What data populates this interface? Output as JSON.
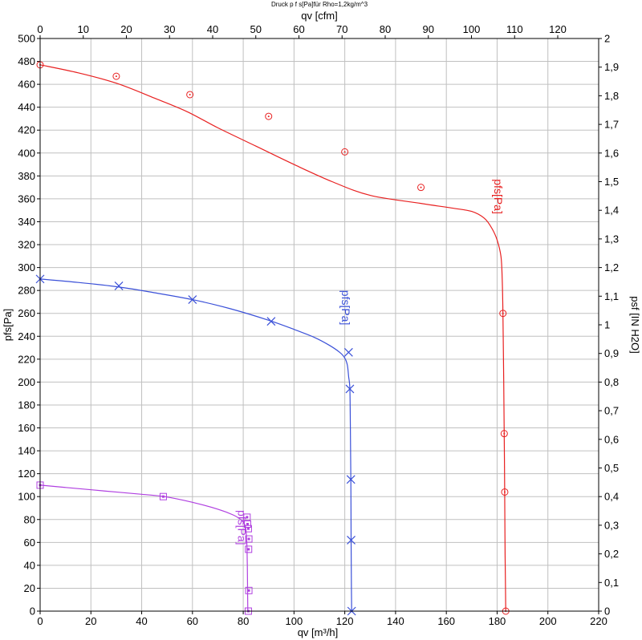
{
  "chart_data": {
    "type": "line",
    "title": "Druck p f s[Pa]für Rho=1,2kg/m^3",
    "xlabel": "qv [m³/h]",
    "x2label": "qv [cfm]",
    "ylabel": "pfs[Pa]",
    "y2label": "psf [IN H2O]",
    "xlim": [
      0,
      220
    ],
    "x2lim": [
      0,
      129.49
    ],
    "ylim": [
      0,
      500
    ],
    "y2lim": [
      0,
      2.0
    ],
    "grid": true,
    "x_ticks": [
      "0",
      "20",
      "40",
      "60",
      "80",
      "100",
      "120",
      "140",
      "160",
      "180",
      "200",
      "220"
    ],
    "x2_ticks": [
      "0",
      "10",
      "20",
      "30",
      "40",
      "50",
      "60",
      "70",
      "80",
      "90",
      "100",
      "110",
      "120"
    ],
    "y_ticks": [
      "0",
      "20",
      "40",
      "60",
      "80",
      "100",
      "120",
      "140",
      "160",
      "180",
      "200",
      "220",
      "240",
      "260",
      "280",
      "300",
      "320",
      "340",
      "360",
      "380",
      "400",
      "420",
      "440",
      "460",
      "480",
      "500"
    ],
    "y2_ticks": [
      "0",
      "0,1",
      "0,2",
      "0,3",
      "0,4",
      "0,5",
      "0,6",
      "0,7",
      "0,8",
      "0,9",
      "1",
      "1,1",
      "1,2",
      "1,3",
      "1,4",
      "1,5",
      "1,6",
      "1,7",
      "1,8",
      "1,9",
      "2"
    ],
    "series": [
      {
        "name": "pfs[Pa]",
        "color": "#e82020",
        "marker": "circle",
        "curve": [
          [
            0,
            477
          ],
          [
            15,
            470
          ],
          [
            30,
            461
          ],
          [
            45,
            448
          ],
          [
            58,
            436
          ],
          [
            70,
            422
          ],
          [
            85,
            406
          ],
          [
            100,
            390
          ],
          [
            115,
            375
          ],
          [
            130,
            363
          ],
          [
            150,
            356
          ],
          [
            162,
            352
          ],
          [
            170,
            349
          ],
          [
            175,
            343
          ],
          [
            178,
            334
          ],
          [
            180,
            324
          ],
          [
            181.5,
            310
          ],
          [
            182,
            290
          ],
          [
            182.3,
            260
          ],
          [
            182.6,
            200
          ],
          [
            182.8,
            154
          ],
          [
            183,
            103
          ],
          [
            183.1,
            60
          ],
          [
            183.3,
            20
          ],
          [
            183.4,
            0
          ]
        ],
        "points": [
          [
            0,
            477
          ],
          [
            30,
            467
          ],
          [
            59,
            451
          ],
          [
            90,
            432
          ],
          [
            120,
            401
          ],
          [
            150,
            370
          ],
          [
            182.3,
            260
          ],
          [
            182.8,
            155
          ],
          [
            183,
            104
          ],
          [
            183.4,
            0
          ]
        ]
      },
      {
        "name": "pfs[Pa]",
        "color": "#3a50d8",
        "marker": "x",
        "curve": [
          [
            0,
            290
          ],
          [
            15,
            287
          ],
          [
            31,
            283
          ],
          [
            45,
            278
          ],
          [
            60,
            272
          ],
          [
            75,
            264
          ],
          [
            90,
            254
          ],
          [
            100,
            246
          ],
          [
            108,
            239
          ],
          [
            114,
            232
          ],
          [
            118,
            226
          ],
          [
            120,
            221
          ],
          [
            121,
            215
          ],
          [
            121.5,
            205
          ],
          [
            122,
            194
          ],
          [
            122.2,
            160
          ],
          [
            122.4,
            114
          ],
          [
            122.5,
            62
          ],
          [
            122.6,
            20
          ],
          [
            122.7,
            0
          ]
        ],
        "points": [
          [
            0,
            290
          ],
          [
            31,
            284
          ],
          [
            60,
            272
          ],
          [
            91,
            253
          ],
          [
            121.5,
            226
          ],
          [
            122,
            194
          ],
          [
            122.4,
            115
          ],
          [
            122.5,
            62
          ],
          [
            122.7,
            0
          ]
        ]
      },
      {
        "name": "pfs[Pa]",
        "color": "#b040e0",
        "marker": "square",
        "curve": [
          [
            0,
            110
          ],
          [
            10,
            108
          ],
          [
            25,
            105
          ],
          [
            40,
            102
          ],
          [
            49,
            100
          ],
          [
            60,
            95
          ],
          [
            70,
            89
          ],
          [
            76,
            84
          ],
          [
            79,
            80
          ],
          [
            80.5,
            76
          ],
          [
            81,
            72
          ],
          [
            81.3,
            64
          ],
          [
            81.5,
            54
          ],
          [
            81.6,
            40
          ],
          [
            81.7,
            20
          ],
          [
            81.8,
            0
          ]
        ],
        "points": [
          [
            0,
            110
          ],
          [
            48.5,
            100
          ],
          [
            81.5,
            82
          ],
          [
            81.7,
            76
          ],
          [
            82,
            72
          ],
          [
            82.2,
            63
          ],
          [
            82.1,
            54
          ],
          [
            82.2,
            18
          ],
          [
            82,
            0
          ]
        ]
      }
    ]
  }
}
